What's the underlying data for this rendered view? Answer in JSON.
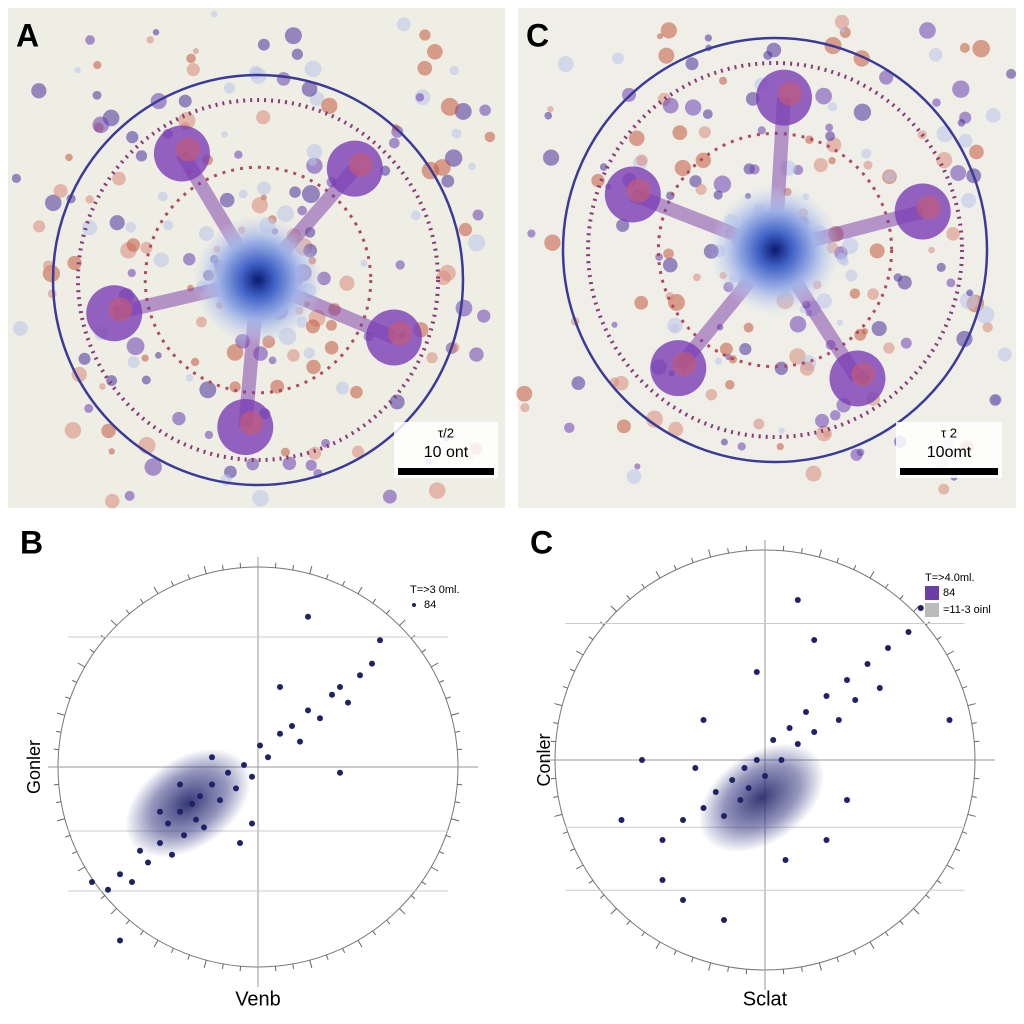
{
  "panels": [
    {
      "label": "A",
      "scale_top": "τ/2",
      "scale_label": "10 ont"
    },
    {
      "label": "C",
      "scale_top": "τ 2",
      "scale_label": "10omt"
    }
  ],
  "chart_data": [
    {
      "type": "scatter",
      "label": "B",
      "xlabel": "Venb",
      "ylabel": "Gonler",
      "legend_title": "T=>3 0ml.",
      "xlim": [
        0,
        100
      ],
      "ylim": [
        0,
        100
      ],
      "series": [
        {
          "name": "84",
          "color": "#1f2266",
          "x": [
            12,
            15,
            18,
            20,
            22,
            25,
            27,
            28,
            30,
            31,
            33,
            34,
            35,
            36,
            38,
            40,
            42,
            44,
            46,
            48,
            50,
            52,
            55,
            58,
            60,
            62,
            65,
            68,
            70,
            72,
            75,
            78,
            80,
            45,
            38,
            25,
            30,
            55,
            70,
            8,
            15,
            62,
            48
          ],
          "values": [
            18,
            22,
            20,
            28,
            25,
            30,
            35,
            27,
            38,
            32,
            40,
            36,
            42,
            34,
            45,
            41,
            48,
            44,
            50,
            47,
            55,
            52,
            58,
            60,
            56,
            64,
            62,
            68,
            70,
            66,
            73,
            76,
            82,
            30,
            52,
            38,
            45,
            70,
            48,
            20,
            5,
            88,
            35
          ]
        }
      ]
    },
    {
      "type": "scatter",
      "label": "C",
      "xlabel": "Sclat",
      "ylabel": "Conler",
      "legend_title": "T=>4.0ml.",
      "xlim": [
        0,
        100
      ],
      "ylim": [
        0,
        100
      ],
      "series": [
        {
          "name": "84",
          "color": "#1f2266",
          "x": [
            25,
            30,
            35,
            38,
            40,
            42,
            44,
            45,
            46,
            48,
            50,
            52,
            54,
            56,
            58,
            60,
            62,
            65,
            68,
            70,
            72,
            75,
            78,
            80,
            85,
            88,
            20,
            15,
            30,
            55,
            62,
            48,
            35,
            95,
            40,
            70,
            58,
            25,
            65,
            33
          ],
          "values": [
            30,
            35,
            38,
            42,
            36,
            45,
            40,
            48,
            43,
            50,
            46,
            55,
            50,
            58,
            54,
            62,
            57,
            66,
            60,
            70,
            65,
            74,
            68,
            78,
            82,
            88,
            50,
            35,
            15,
            25,
            80,
            72,
            60,
            60,
            10,
            40,
            90,
            20,
            30,
            48
          ]
        },
        {
          "name": "=11-3 oinl",
          "color": "#bbbbbb",
          "x": [],
          "values": []
        }
      ]
    }
  ]
}
